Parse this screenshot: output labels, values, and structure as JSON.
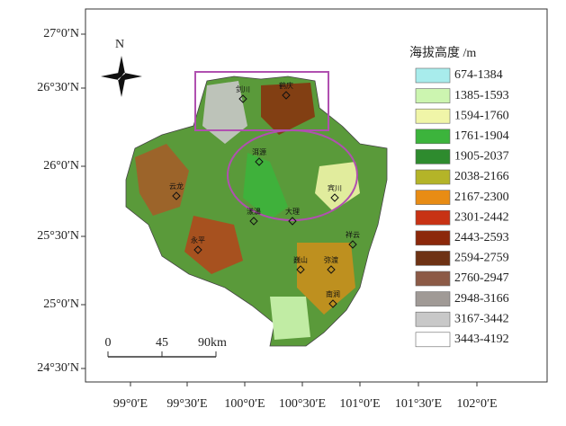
{
  "map": {
    "north": "N",
    "lat_labels": [
      "27°0′N",
      "26°30′N",
      "26°0′N",
      "25°30′N",
      "25°0′N",
      "24°30′N"
    ],
    "lon_labels": [
      "99°0′E",
      "99°30′E",
      "100°0′E",
      "100°30′E",
      "101°0′E",
      "101°30′E",
      "102°0′E"
    ],
    "scale_labels": [
      "0",
      "45",
      "90km"
    ],
    "places": [
      "剑川",
      "鹤庆",
      "洱源",
      "宾川",
      "大理",
      "漾濞",
      "云龙",
      "永平",
      "巍山",
      "弥渡",
      "祥云",
      "南涧"
    ],
    "legend": {
      "title": "海拔高度 /m",
      "items": [
        {
          "label": "674-1384",
          "color": "#a8ecec"
        },
        {
          "label": "1385-1593",
          "color": "#ccf5b0"
        },
        {
          "label": "1594-1760",
          "color": "#f0f5a8"
        },
        {
          "label": "1761-1904",
          "color": "#3cb43c"
        },
        {
          "label": "1905-2037",
          "color": "#2e8b2e"
        },
        {
          "label": "2038-2166",
          "color": "#b4b428"
        },
        {
          "label": "2167-2300",
          "color": "#e88c14"
        },
        {
          "label": "2301-2442",
          "color": "#c83214"
        },
        {
          "label": "2443-2593",
          "color": "#8c280a"
        },
        {
          "label": "2594-2759",
          "color": "#6e3214"
        },
        {
          "label": "2760-2947",
          "color": "#8c5a46"
        },
        {
          "label": "2948-3166",
          "color": "#a09a96"
        },
        {
          "label": "3167-3442",
          "color": "#c8c8c8"
        },
        {
          "label": "3443-4192",
          "color": "#ffffff"
        }
      ]
    }
  }
}
